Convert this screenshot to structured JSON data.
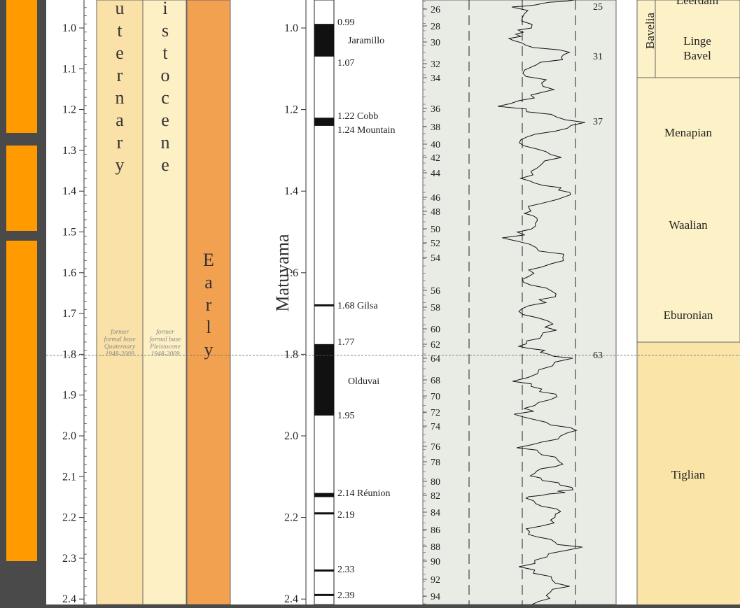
{
  "depth_axis": {
    "ticks": [
      "1.0",
      "1.1",
      "1.2",
      "1.3",
      "1.4",
      "1.5",
      "1.6",
      "1.7",
      "1.8",
      "1.9",
      "2.0",
      "2.1",
      "2.2",
      "2.3",
      "2.4"
    ],
    "ticks_right": [
      "1.0",
      "1.2",
      "1.4",
      "1.6",
      "1.8",
      "2.0",
      "2.2",
      "2.4"
    ]
  },
  "chrono": {
    "quaternary_letters": [
      "u",
      "t",
      "e",
      "r",
      "n",
      "a",
      "r",
      "y"
    ],
    "pleistocene_letters": [
      "i",
      "s",
      "t",
      "o",
      "c",
      "e",
      "n",
      "e"
    ],
    "early_letters": [
      "E",
      "a",
      "r",
      "l",
      "y"
    ],
    "base_note_quaternary": [
      "former",
      "formal base",
      "Quaternary",
      "1948-2009"
    ],
    "base_note_pleistocene": [
      "former",
      "formal base",
      "Pleistocene",
      "1948-2009"
    ]
  },
  "magneto": {
    "chron": "Matuyama",
    "events": [
      {
        "age": "0.99",
        "label": "0.99"
      },
      {
        "age": "jaramillo",
        "label": "Jaramillo"
      },
      {
        "age": "1.07",
        "label": "1.07"
      },
      {
        "age": "1.22",
        "label": "1.22 Cobb"
      },
      {
        "age": "1.24",
        "label": "1.24 Mountain"
      },
      {
        "age": "1.68",
        "label": "1.68 Gilsa"
      },
      {
        "age": "1.77",
        "label": "1.77"
      },
      {
        "age": "olduvai",
        "label": "Olduvai"
      },
      {
        "age": "1.95",
        "label": "1.95"
      },
      {
        "age": "2.14",
        "label": "2.14 Réunion"
      },
      {
        "age": "2.19",
        "label": "2.19"
      },
      {
        "age": "2.33",
        "label": "2.33"
      },
      {
        "age": "2.39",
        "label": "2.39"
      }
    ]
  },
  "isotope": {
    "stages": [
      "26",
      "28",
      "30",
      "32",
      "34",
      "36",
      "38",
      "40",
      "42",
      "44",
      "46",
      "48",
      "50",
      "52",
      "54",
      "56",
      "58",
      "60",
      "62",
      "64",
      "68",
      "70",
      "72",
      "74",
      "76",
      "78",
      "80",
      "82",
      "84",
      "86",
      "88",
      "90",
      "92",
      "94"
    ],
    "peak_labels": [
      "25",
      "31",
      "37",
      "63"
    ]
  },
  "regional_stages": {
    "top_vertical": "Bavelia",
    "top_cutoff": "Leerdam",
    "linge_bavel": [
      "Linge",
      "Bavel"
    ],
    "stages": [
      "Menapian",
      "Waalian",
      "Eburonian",
      "Tiglian"
    ]
  },
  "colors": {
    "sidebar_tab": "#ff9a00",
    "quaternary": "#f9e1a7",
    "pleistocene": "#fdf0c5",
    "early": "#f2a151",
    "isotope_bg": "#e9ece4",
    "stage_bg": "#fcf1c7",
    "tiglian_bg": "#fae4a8"
  }
}
